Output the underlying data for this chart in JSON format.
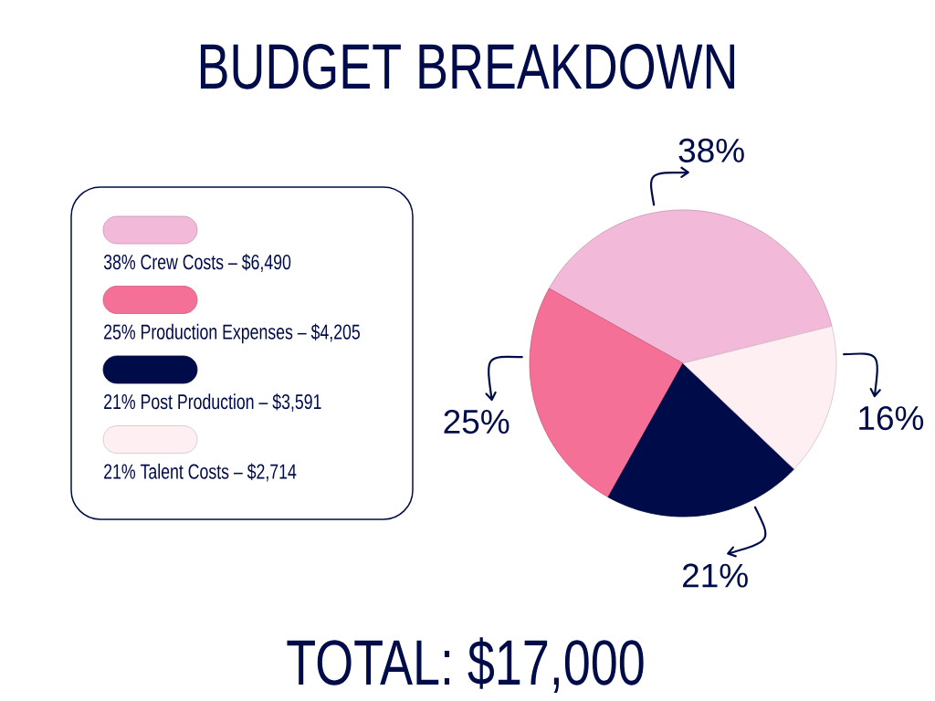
{
  "chart_data": {
    "type": "pie",
    "title": "BUDGET BREAKDOWN",
    "categories": [
      "38% Crew Costs – $6,490",
      "25% Production Expenses – $4,205",
      "21% Post Production – $3,591",
      "21% Talent Costs – $2,714"
    ],
    "values": [
      38,
      25,
      21,
      16
    ],
    "value_labels": [
      "38%",
      "25%",
      "21%",
      "16%"
    ],
    "colors": [
      "#f3b9d8",
      "#f57096",
      "#000c4a",
      "#fdeff2"
    ],
    "legend": "left",
    "annotations": [
      "TOTAL: $17,000"
    ]
  }
}
